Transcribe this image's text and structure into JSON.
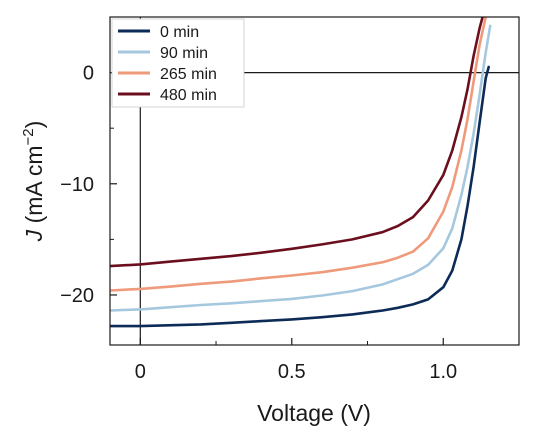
{
  "chart_data": {
    "type": "line",
    "title": "",
    "xlabel": "Voltage (V)",
    "ylabel_prefix": "J",
    "ylabel_unit_open": " (mA cm",
    "ylabel_unit_exp": "−2",
    "ylabel_unit_close": ")",
    "xlim": [
      -0.1,
      1.25
    ],
    "ylim": [
      -24.5,
      5
    ],
    "x_ticks": [
      {
        "value": 0,
        "label": "0"
      },
      {
        "value": 0.5,
        "label": "0.5"
      },
      {
        "value": 1.0,
        "label": "1.0"
      }
    ],
    "x_minor_ticks": [
      0.25,
      0.75
    ],
    "y_ticks": [
      {
        "value": 0,
        "label": "0"
      },
      {
        "value": -10,
        "label": "−10"
      },
      {
        "value": -20,
        "label": "−20"
      }
    ],
    "y_minor_ticks": [
      -5,
      -15
    ],
    "zero_lines": {
      "x": 0,
      "y": 0
    },
    "grid": false,
    "legend_position": "top-left",
    "series": [
      {
        "name": "0 min",
        "color": "#0d2b57",
        "points": [
          [
            -0.1,
            -22.8
          ],
          [
            0.0,
            -22.8
          ],
          [
            0.2,
            -22.65
          ],
          [
            0.3,
            -22.5
          ],
          [
            0.4,
            -22.35
          ],
          [
            0.5,
            -22.2
          ],
          [
            0.6,
            -22.0
          ],
          [
            0.7,
            -21.75
          ],
          [
            0.8,
            -21.4
          ],
          [
            0.85,
            -21.15
          ],
          [
            0.9,
            -20.85
          ],
          [
            0.95,
            -20.4
          ],
          [
            1.0,
            -19.3
          ],
          [
            1.03,
            -17.8
          ],
          [
            1.06,
            -15.0
          ],
          [
            1.08,
            -12.0
          ],
          [
            1.1,
            -8.5
          ],
          [
            1.12,
            -4.5
          ],
          [
            1.14,
            -0.5
          ],
          [
            1.15,
            0.5
          ]
        ]
      },
      {
        "name": "90 min",
        "color": "#a6c8df",
        "points": [
          [
            -0.1,
            -21.4
          ],
          [
            0.0,
            -21.3
          ],
          [
            0.1,
            -21.1
          ],
          [
            0.2,
            -20.9
          ],
          [
            0.3,
            -20.75
          ],
          [
            0.4,
            -20.55
          ],
          [
            0.5,
            -20.35
          ],
          [
            0.6,
            -20.05
          ],
          [
            0.7,
            -19.65
          ],
          [
            0.8,
            -19.05
          ],
          [
            0.9,
            -18.1
          ],
          [
            0.95,
            -17.3
          ],
          [
            1.0,
            -15.8
          ],
          [
            1.03,
            -14.0
          ],
          [
            1.06,
            -11.0
          ],
          [
            1.08,
            -8.5
          ],
          [
            1.1,
            -5.5
          ],
          [
            1.12,
            -2.0
          ],
          [
            1.14,
            1.8
          ],
          [
            1.155,
            4.2
          ]
        ]
      },
      {
        "name": "265 min",
        "color": "#ef9a7a",
        "points": [
          [
            -0.1,
            -19.6
          ],
          [
            0.0,
            -19.45
          ],
          [
            0.1,
            -19.25
          ],
          [
            0.2,
            -19.0
          ],
          [
            0.3,
            -18.8
          ],
          [
            0.4,
            -18.5
          ],
          [
            0.5,
            -18.25
          ],
          [
            0.6,
            -17.95
          ],
          [
            0.7,
            -17.55
          ],
          [
            0.8,
            -17.05
          ],
          [
            0.85,
            -16.65
          ],
          [
            0.9,
            -16.1
          ],
          [
            0.95,
            -14.9
          ],
          [
            1.0,
            -12.5
          ],
          [
            1.03,
            -10.3
          ],
          [
            1.06,
            -7.0
          ],
          [
            1.08,
            -4.2
          ],
          [
            1.1,
            -0.8
          ],
          [
            1.12,
            2.5
          ],
          [
            1.14,
            5.0
          ]
        ]
      },
      {
        "name": "480 min",
        "color": "#6b0f1f",
        "points": [
          [
            -0.1,
            -17.4
          ],
          [
            0.0,
            -17.25
          ],
          [
            0.1,
            -17.0
          ],
          [
            0.2,
            -16.75
          ],
          [
            0.3,
            -16.5
          ],
          [
            0.4,
            -16.2
          ],
          [
            0.5,
            -15.85
          ],
          [
            0.6,
            -15.45
          ],
          [
            0.7,
            -15.0
          ],
          [
            0.8,
            -14.35
          ],
          [
            0.85,
            -13.8
          ],
          [
            0.9,
            -13.0
          ],
          [
            0.95,
            -11.5
          ],
          [
            1.0,
            -9.2
          ],
          [
            1.03,
            -7.0
          ],
          [
            1.06,
            -4.0
          ],
          [
            1.08,
            -1.5
          ],
          [
            1.1,
            1.5
          ],
          [
            1.12,
            4.0
          ],
          [
            1.13,
            5.0
          ]
        ]
      }
    ]
  }
}
